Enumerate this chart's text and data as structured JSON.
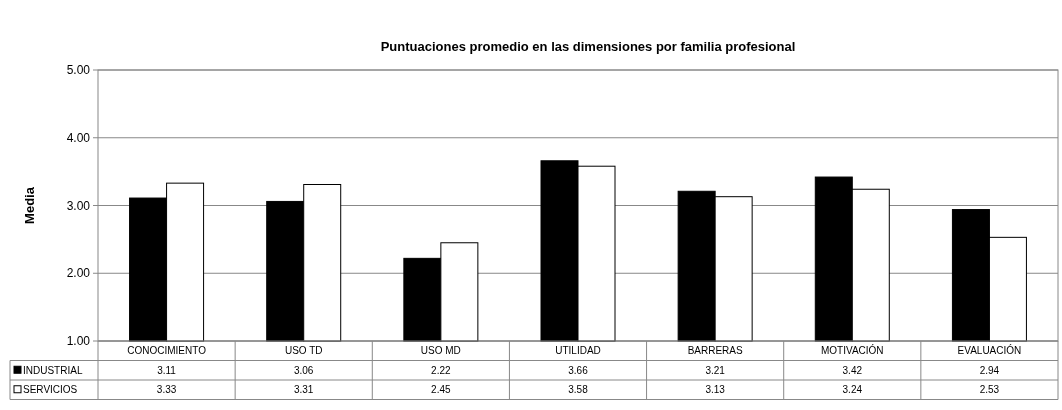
{
  "chart_data": {
    "type": "bar",
    "title": "Puntuaciones promedio en las dimensiones por familia profesional",
    "ylabel": "Media",
    "categories": [
      "CONOCIMIENTO",
      "USO TD",
      "USO MD",
      "UTILIDAD",
      "BARRERAS",
      "MOTIVACIÓN",
      "EVALUACIÓN"
    ],
    "series": [
      {
        "name": "INDUSTRIAL",
        "color": "#000000",
        "values": [
          3.11,
          3.06,
          2.22,
          3.66,
          3.21,
          3.42,
          2.94
        ]
      },
      {
        "name": "SERVICIOS",
        "color": "#ffffff",
        "values": [
          3.33,
          3.31,
          2.45,
          3.58,
          3.13,
          3.24,
          2.53
        ]
      }
    ],
    "ylim": [
      1,
      5
    ],
    "yticks": [
      {
        "value": 1,
        "label": "1.00"
      },
      {
        "value": 2,
        "label": "2.00"
      },
      {
        "value": 3,
        "label": "3.00"
      },
      {
        "value": 4,
        "label": "4.00"
      },
      {
        "value": 5,
        "label": "5.00"
      }
    ],
    "grid": "y",
    "legend": "bottom left",
    "data_labels": true
  }
}
